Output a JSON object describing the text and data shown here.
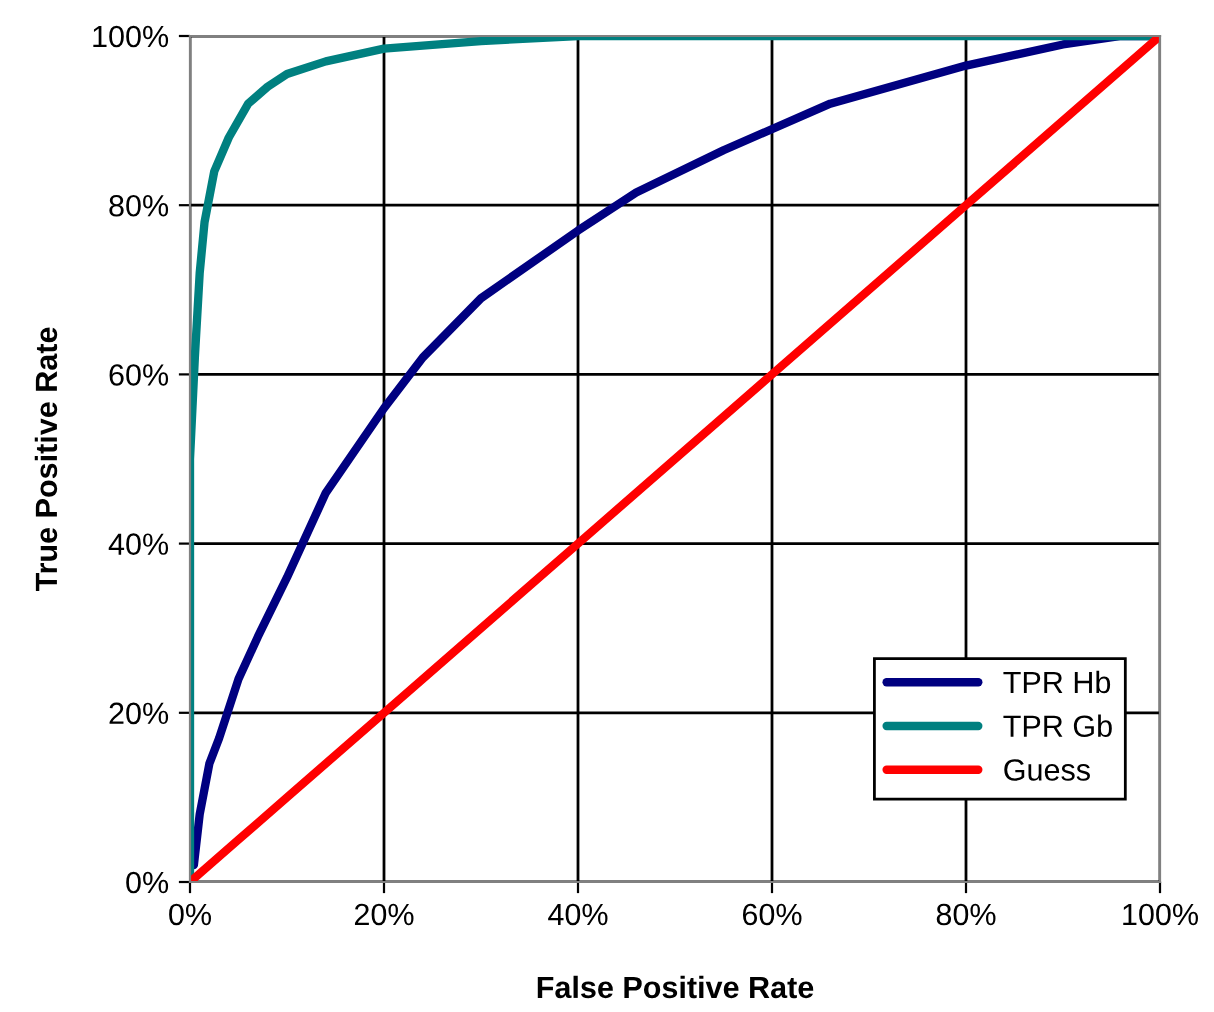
{
  "chart_data": {
    "type": "line",
    "xlabel": "False Positive Rate",
    "ylabel": "True Positive Rate",
    "xlim": [
      0,
      100
    ],
    "ylim": [
      0,
      100
    ],
    "xticks": [
      {
        "value": 0,
        "label": "0%"
      },
      {
        "value": 20,
        "label": "20%"
      },
      {
        "value": 40,
        "label": "40%"
      },
      {
        "value": 60,
        "label": "60%"
      },
      {
        "value": 80,
        "label": "80%"
      },
      {
        "value": 100,
        "label": "100%"
      }
    ],
    "yticks": [
      {
        "value": 0,
        "label": "0%"
      },
      {
        "value": 20,
        "label": "20%"
      },
      {
        "value": 40,
        "label": "40%"
      },
      {
        "value": 60,
        "label": "60%"
      },
      {
        "value": 80,
        "label": "80%"
      },
      {
        "value": 100,
        "label": "100%"
      }
    ],
    "grid": true,
    "legend": "bottom right",
    "marker": "none",
    "line_style": "solid",
    "series": [
      {
        "name": "TPR Hb",
        "color": "#000080",
        "x": [
          0.4,
          1,
          2,
          3,
          5,
          7,
          10,
          14,
          20,
          24,
          30,
          40,
          46,
          55,
          66,
          80,
          90,
          96,
          100
        ],
        "values": [
          2,
          8,
          14,
          17,
          24,
          29,
          36,
          46,
          56,
          62,
          69,
          77,
          81.5,
          86.5,
          92,
          96.5,
          99,
          100,
          100
        ]
      },
      {
        "name": "TPR Gb",
        "color": "#008080",
        "x": [
          0,
          0,
          0.5,
          1,
          1.5,
          2.5,
          4,
          6,
          8,
          10,
          14,
          20,
          30,
          40,
          100
        ],
        "values": [
          0,
          50,
          62,
          72,
          78,
          84,
          88,
          92,
          94,
          95.5,
          97,
          98.5,
          99.4,
          100,
          100
        ]
      },
      {
        "name": "Guess",
        "color": "#ff0000",
        "x": [
          0,
          5,
          10,
          20,
          40,
          60,
          80,
          100
        ],
        "values": [
          0,
          5,
          10,
          20,
          40,
          60,
          80,
          100
        ]
      }
    ]
  }
}
